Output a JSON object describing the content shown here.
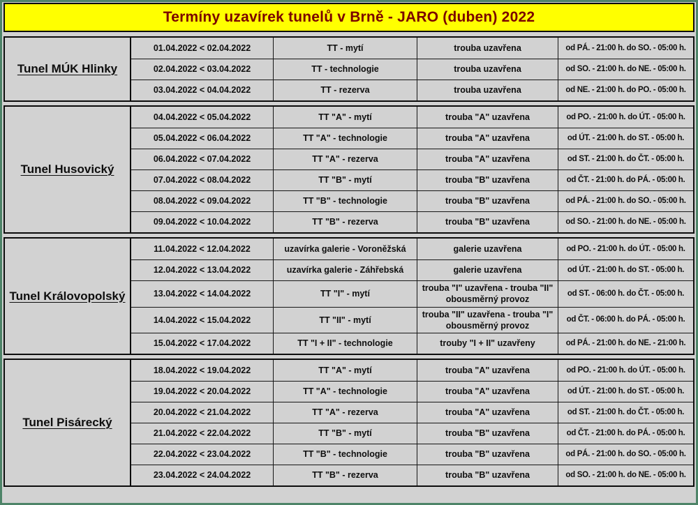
{
  "title": "Termíny uzavírek tunelů v Brně - JARO (duben) 2022",
  "colors": {
    "title_bg": "#ffff00",
    "title_text": "#7a0000",
    "table_bg": "#d2d2d2",
    "border": "#0c0c0c",
    "outer_frame": "#4e8468"
  },
  "sections": [
    {
      "tunnel": "Tunel MÚK Hlinky",
      "rows": [
        {
          "dates": "01.04.2022 < 02.04.2022",
          "task": "TT - mytí",
          "status": "trouba uzavřena",
          "time": "od PÁ. - 21:00 h. do SO. - 05:00 h."
        },
        {
          "dates": "02.04.2022 < 03.04.2022",
          "task": "TT - technologie",
          "status": "trouba uzavřena",
          "time": "od SO. - 21:00 h. do NE. - 05:00 h."
        },
        {
          "dates": "03.04.2022 < 04.04.2022",
          "task": "TT - rezerva",
          "status": "trouba uzavřena",
          "time": "od NE. - 21:00 h. do PO. - 05:00 h."
        }
      ]
    },
    {
      "tunnel": "Tunel Husovický",
      "rows": [
        {
          "dates": "04.04.2022 < 05.04.2022",
          "task": "TT \"A\" - mytí",
          "status": "trouba \"A\" uzavřena",
          "time": "od PO. - 21:00 h. do ÚT. - 05:00 h."
        },
        {
          "dates": "05.04.2022 < 06.04.2022",
          "task": "TT \"A\" - technologie",
          "status": "trouba \"A\" uzavřena",
          "time": "od ÚT. - 21:00 h. do ST. - 05:00 h."
        },
        {
          "dates": "06.04.2022 < 07.04.2022",
          "task": "TT \"A\" - rezerva",
          "status": "trouba \"A\" uzavřena",
          "time": "od ST. - 21:00 h. do ČT. - 05:00 h."
        },
        {
          "dates": "07.04.2022 < 08.04.2022",
          "task": "TT \"B\" - mytí",
          "status": "trouba \"B\" uzavřena",
          "time": "od ČT. - 21:00 h. do PÁ. - 05:00 h."
        },
        {
          "dates": "08.04.2022 < 09.04.2022",
          "task": "TT \"B\" - technologie",
          "status": "trouba \"B\" uzavřena",
          "time": "od PÁ. - 21:00 h. do SO. - 05:00 h."
        },
        {
          "dates": "09.04.2022 < 10.04.2022",
          "task": "TT \"B\" - rezerva",
          "status": "trouba \"B\" uzavřena",
          "time": "od SO. - 21:00 h. do NE. - 05:00 h."
        }
      ]
    },
    {
      "tunnel": "Tunel Královopolský",
      "rows": [
        {
          "dates": "11.04.2022 < 12.04.2022",
          "task": "uzavírka galerie - Voroněžská",
          "status": "galerie uzavřena",
          "time": "od PO. - 21:00 h. do ÚT. - 05:00 h."
        },
        {
          "dates": "12.04.2022 < 13.04.2022",
          "task": "uzavírka galerie - Záhřebská",
          "status": "galerie uzavřena",
          "time": "od ÚT. - 21:00 h. do ST. - 05:00 h."
        },
        {
          "dates": "13.04.2022 < 14.04.2022",
          "task": "TT \"I\" - mytí",
          "status": "trouba \"I\" uzavřena - trouba \"II\" obousměrný provoz",
          "time": "od ST. - 06:00 h. do ČT. - 05:00 h."
        },
        {
          "dates": "14.04.2022 < 15.04.2022",
          "task": "TT \"II\" - mytí",
          "status": "trouba \"II\" uzavřena - trouba \"I\" obousměrný provoz",
          "time": "od ČT. - 06:00 h. do PÁ. - 05:00 h."
        },
        {
          "dates": "15.04.2022 < 17.04.2022",
          "task": "TT \"I + II\" - technologie",
          "status": "trouby \"I + II\" uzavřeny",
          "time": "od PÁ. - 21:00 h. do NE. - 21:00 h."
        }
      ]
    },
    {
      "tunnel": "Tunel Pisárecký",
      "rows": [
        {
          "dates": "18.04.2022 < 19.04.2022",
          "task": "TT \"A\" - mytí",
          "status": "trouba \"A\" uzavřena",
          "time": "od PO. - 21:00 h. do ÚT. - 05:00 h."
        },
        {
          "dates": "19.04.2022 < 20.04.2022",
          "task": "TT \"A\" - technologie",
          "status": "trouba \"A\" uzavřena",
          "time": "od ÚT. - 21:00 h. do ST. - 05:00 h."
        },
        {
          "dates": "20.04.2022 < 21.04.2022",
          "task": "TT \"A\" - rezerva",
          "status": "trouba \"A\" uzavřena",
          "time": "od ST. - 21:00 h. do ČT. - 05:00 h."
        },
        {
          "dates": "21.04.2022 < 22.04.2022",
          "task": "TT \"B\" - mytí",
          "status": "trouba \"B\" uzavřena",
          "time": "od ČT. - 21:00 h. do PÁ. - 05:00 h."
        },
        {
          "dates": "22.04.2022 < 23.04.2022",
          "task": "TT \"B\" - technologie",
          "status": "trouba \"B\" uzavřena",
          "time": "od PÁ. - 21:00 h. do SO. - 05:00 h."
        },
        {
          "dates": "23.04.2022 < 24.04.2022",
          "task": "TT \"B\" - rezerva",
          "status": "trouba \"B\" uzavřena",
          "time": "od SO. - 21:00 h. do NE. - 05:00 h."
        }
      ]
    }
  ]
}
